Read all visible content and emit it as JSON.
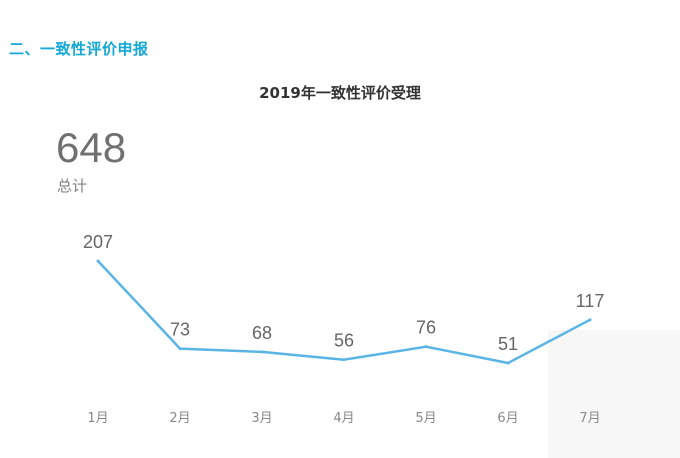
{
  "section_heading": "二、一致性评价申报",
  "summary": {
    "total": "648",
    "total_label": "总计"
  },
  "colors": {
    "heading": "#12a8d8",
    "line": "#5ab4e5",
    "text": "#666666"
  },
  "chart_data": {
    "type": "line",
    "title": "2019年一致性评价受理",
    "categories": [
      "1月",
      "2月",
      "3月",
      "4月",
      "5月",
      "6月",
      "7月"
    ],
    "series": [
      {
        "values": [
          207,
          73,
          68,
          56,
          76,
          51,
          117
        ]
      }
    ],
    "data_labels": true,
    "grid": false,
    "legend": "none",
    "xlabel": "",
    "ylabel": ""
  }
}
